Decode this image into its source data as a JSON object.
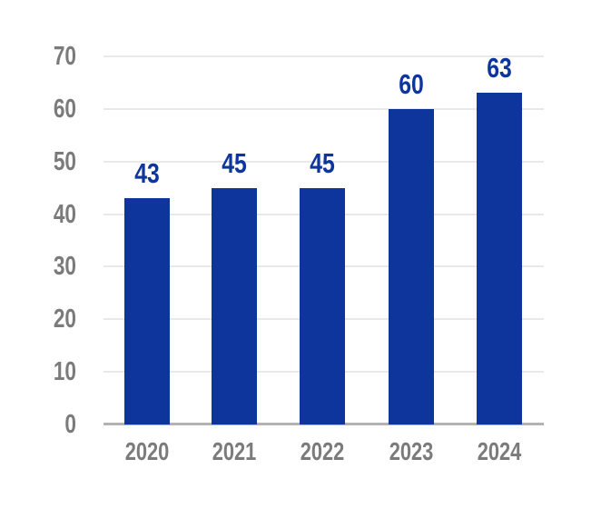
{
  "chart_data": {
    "type": "bar",
    "title": "",
    "categories": [
      "2020",
      "2021",
      "2022",
      "2023",
      "2024"
    ],
    "values": [
      43,
      45,
      45,
      60,
      63
    ],
    "value_labels": [
      "43",
      "45",
      "45",
      "60",
      "63"
    ],
    "xlabel": "",
    "ylabel": "",
    "ylim": [
      0,
      70
    ],
    "yticks": [
      0,
      10,
      20,
      30,
      40,
      50,
      60,
      70
    ],
    "ytick_labels": [
      "0",
      "10",
      "20",
      "30",
      "40",
      "50",
      "60",
      "70"
    ],
    "grid": "horizontal",
    "legend_position": "none",
    "colors": {
      "bar": "#0d359c",
      "value_label": "#0d359c",
      "axis_text": "#7b7b7b",
      "gridline": "#e9e9e9",
      "baseline": "#b3b3b3",
      "background": "#ffffff"
    }
  }
}
